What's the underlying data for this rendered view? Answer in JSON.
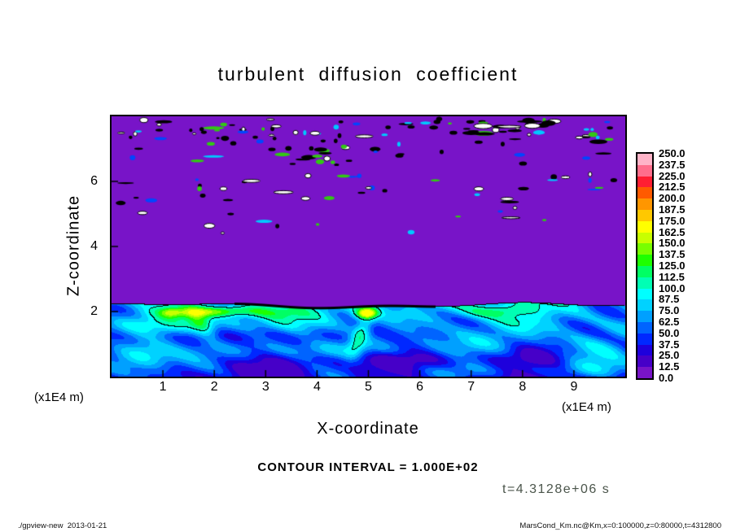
{
  "title": "turbulent diffusion coefficient",
  "axes": {
    "x": {
      "label": "X-coordinate",
      "unit": "(x1E4 m)",
      "tick_labels": [
        "1",
        "2",
        "3",
        "4",
        "5",
        "6",
        "7",
        "8",
        "9"
      ],
      "range": [
        0,
        10
      ]
    },
    "y": {
      "label": "Z-coordinate",
      "unit": "(x1E4 m)",
      "tick_labels": [
        "2",
        "4",
        "6"
      ],
      "range": [
        0,
        8
      ]
    }
  },
  "colorbar": {
    "labels_top_to_bottom": [
      "250.0",
      "237.5",
      "225.0",
      "212.5",
      "200.0",
      "187.5",
      "175.0",
      "162.5",
      "150.0",
      "137.5",
      "125.0",
      "112.5",
      "100.0",
      "87.5",
      "75.0",
      "62.5",
      "50.0",
      "37.5",
      "25.0",
      "12.5",
      "0.0"
    ],
    "band_colors_top_to_bottom": [
      "#ffb4c8",
      "#ff6e8c",
      "#ff1e32",
      "#ff5a00",
      "#ff9600",
      "#ffc800",
      "#ffff00",
      "#c8ff00",
      "#78ff00",
      "#1eff00",
      "#00ff64",
      "#00ffb4",
      "#00ffff",
      "#00d2ff",
      "#00a0ff",
      "#0064ff",
      "#0028ff",
      "#1e00dc",
      "#4600c8",
      "#7814c8"
    ]
  },
  "annotations": {
    "contour_interval": "CONTOUR INTERVAL = 1.000E+02",
    "time_label": "t=4.3128e+06 s"
  },
  "footer": {
    "left": "./gpview-new  2013-01-21",
    "right": "MarsCond_Km.nc@Km,x=0:100000,z=0:80000,t=4312800"
  },
  "chart_data": {
    "type": "heatmap",
    "title": "turbulent diffusion coefficient",
    "xlabel": "X-coordinate (x1E4 m)",
    "ylabel": "Z-coordinate (x1E4 m)",
    "xlim": [
      0,
      10
    ],
    "ylim": [
      0,
      8
    ],
    "x_ticks": [
      1,
      2,
      3,
      4,
      5,
      6,
      7,
      8,
      9
    ],
    "y_ticks": [
      2,
      4,
      6
    ],
    "color_levels": [
      0,
      12.5,
      25,
      37.5,
      50,
      62.5,
      75,
      87.5,
      100,
      112.5,
      125,
      137.5,
      150,
      162.5,
      175,
      187.5,
      200,
      212.5,
      225,
      237.5,
      250
    ],
    "contour_interval": 100,
    "time_seconds": 4312800,
    "field_description": [
      {
        "region": "upper region, z ≈ 2.2–8 (x1E4 m)",
        "values": "≈0–12.5 (uniform minimum, purple) with sparse small speckled patches (black contours, white/blue/green spots) mainly between z ≈ 5 and 8"
      },
      {
        "region": "boundary layer, z ≈ 0–2.2 (x1E4 m)",
        "values": "turbulent field ≈25–150; mostly 25–62.5 (blue) with cyan swirls 75–100 and local maxima 112.5–162.5 (green/yellow) near the layer top around x ≈ 1–3 and x ≈ 5; black contour lines at the 100 level and along the layer top"
      }
    ]
  }
}
